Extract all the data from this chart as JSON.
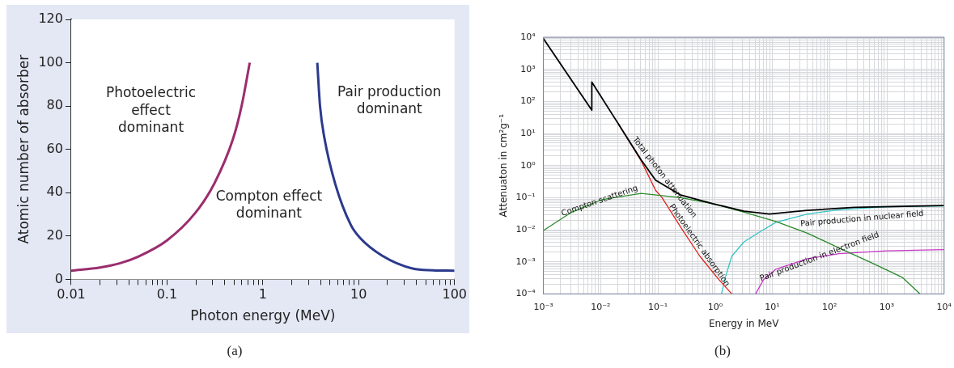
{
  "chart_data": [
    {
      "type": "line",
      "xlabel": "Photon energy (MeV)",
      "ylabel": "Atomic number of absorber",
      "log": "x",
      "grid": false,
      "legend": false,
      "xlim": [
        0.01,
        100
      ],
      "ylim": [
        0,
        120
      ],
      "xticks": [
        0.01,
        {
          "value": 0.02,
          "label": null
        },
        {
          "value": 0.03,
          "label": null
        },
        {
          "value": 0.04,
          "label": null
        },
        {
          "value": 0.05,
          "label": null
        },
        {
          "value": 0.06,
          "label": null
        },
        {
          "value": 0.07,
          "label": null
        },
        {
          "value": 0.08,
          "label": null
        },
        {
          "value": 0.09,
          "label": null
        },
        0.1,
        {
          "value": 0.2,
          "label": null
        },
        {
          "value": 0.3,
          "label": null
        },
        {
          "value": 0.4,
          "label": null
        },
        {
          "value": 0.5,
          "label": null
        },
        {
          "value": 0.6,
          "label": null
        },
        {
          "value": 0.7,
          "label": null
        },
        {
          "value": 0.8,
          "label": null
        },
        {
          "value": 0.9,
          "label": null
        },
        1,
        {
          "value": 2,
          "label": null
        },
        {
          "value": 3,
          "label": null
        },
        {
          "value": 4,
          "label": null
        },
        {
          "value": 5,
          "label": null
        },
        {
          "value": 6,
          "label": null
        },
        {
          "value": 7,
          "label": null
        },
        {
          "value": 8,
          "label": null
        },
        {
          "value": 9,
          "label": null
        },
        10,
        {
          "value": 20,
          "label": null
        },
        {
          "value": 30,
          "label": null
        },
        {
          "value": 40,
          "label": null
        },
        {
          "value": 50,
          "label": null
        },
        {
          "value": 60,
          "label": null
        },
        {
          "value": 70,
          "label": null
        },
        {
          "value": 80,
          "label": null
        },
        {
          "value": 90,
          "label": null
        },
        100
      ],
      "yticks": [
        0,
        20,
        40,
        60,
        80,
        100,
        120
      ],
      "series": [
        {
          "color": "#9b2d6e",
          "x": [
            0.01,
            0.02,
            0.032,
            0.05,
            0.1,
            0.2,
            0.31,
            0.49,
            0.6,
            0.73
          ],
          "values": [
            4,
            5.5,
            7.4,
            10.5,
            18,
            31,
            44,
            65,
            80,
            100
          ]
        },
        {
          "color": "#2b3a8c",
          "x": [
            3.7,
            3.95,
            4.4,
            5.7,
            8.3,
            10.4,
            17.5,
            36.6,
            60,
            100
          ],
          "values": [
            100,
            80,
            65,
            44,
            25,
            19,
            11,
            5,
            4.2,
            4
          ]
        }
      ],
      "annotations": [
        "Photoelectric\neffect\ndominant",
        "Compton effect\ndominant",
        "Pair production\ndominant",
        "(a)"
      ]
    },
    {
      "type": "line",
      "xlabel": "Energy in MeV",
      "ylabel": "Attenuaton in cm²g⁻¹",
      "log": "xy",
      "grid": true,
      "legend": false,
      "xlim": [
        0.001,
        10000
      ],
      "ylim": [
        0.0001,
        10000
      ],
      "xticks": [
        {
          "value": 0.001,
          "label": "10⁻³"
        },
        {
          "value": 0.002,
          "label": null
        },
        {
          "value": 0.003,
          "label": null
        },
        {
          "value": 0.004,
          "label": null
        },
        {
          "value": 0.005,
          "label": null
        },
        {
          "value": 0.006,
          "label": null
        },
        {
          "value": 0.007,
          "label": null
        },
        {
          "value": 0.008,
          "label": null
        },
        {
          "value": 0.009,
          "label": null
        },
        {
          "value": 0.01,
          "label": "10⁻²"
        },
        {
          "value": 0.02,
          "label": null
        },
        {
          "value": 0.03,
          "label": null
        },
        {
          "value": 0.04,
          "label": null
        },
        {
          "value": 0.05,
          "label": null
        },
        {
          "value": 0.06,
          "label": null
        },
        {
          "value": 0.07,
          "label": null
        },
        {
          "value": 0.08,
          "label": null
        },
        {
          "value": 0.09,
          "label": null
        },
        {
          "value": 0.1,
          "label": "10⁻¹"
        },
        {
          "value": 0.2,
          "label": null
        },
        {
          "value": 0.3,
          "label": null
        },
        {
          "value": 0.4,
          "label": null
        },
        {
          "value": 0.5,
          "label": null
        },
        {
          "value": 0.6,
          "label": null
        },
        {
          "value": 0.7,
          "label": null
        },
        {
          "value": 0.8,
          "label": null
        },
        {
          "value": 0.9,
          "label": null
        },
        {
          "value": 1,
          "label": "10⁰"
        },
        {
          "value": 2,
          "label": null
        },
        {
          "value": 3,
          "label": null
        },
        {
          "value": 4,
          "label": null
        },
        {
          "value": 5,
          "label": null
        },
        {
          "value": 6,
          "label": null
        },
        {
          "value": 7,
          "label": null
        },
        {
          "value": 8,
          "label": null
        },
        {
          "value": 9,
          "label": null
        },
        {
          "value": 10,
          "label": "10¹"
        },
        {
          "value": 20,
          "label": null
        },
        {
          "value": 30,
          "label": null
        },
        {
          "value": 40,
          "label": null
        },
        {
          "value": 50,
          "label": null
        },
        {
          "value": 60,
          "label": null
        },
        {
          "value": 70,
          "label": null
        },
        {
          "value": 80,
          "label": null
        },
        {
          "value": 90,
          "label": null
        },
        {
          "value": 100,
          "label": "10²"
        },
        {
          "value": 200,
          "label": null
        },
        {
          "value": 300,
          "label": null
        },
        {
          "value": 400,
          "label": null
        },
        {
          "value": 500,
          "label": null
        },
        {
          "value": 600,
          "label": null
        },
        {
          "value": 700,
          "label": null
        },
        {
          "value": 800,
          "label": null
        },
        {
          "value": 900,
          "label": null
        },
        {
          "value": 1000,
          "label": "10³"
        },
        {
          "value": 2000,
          "label": null
        },
        {
          "value": 3000,
          "label": null
        },
        {
          "value": 4000,
          "label": null
        },
        {
          "value": 5000,
          "label": null
        },
        {
          "value": 6000,
          "label": null
        },
        {
          "value": 7000,
          "label": null
        },
        {
          "value": 8000,
          "label": null
        },
        {
          "value": 9000,
          "label": null
        },
        {
          "value": 10000,
          "label": "10⁴"
        }
      ],
      "yticks": [
        {
          "value": 0.0001,
          "label": "10⁻⁴"
        },
        {
          "value": 0.0002,
          "label": null
        },
        {
          "value": 0.0003,
          "label": null
        },
        {
          "value": 0.0004,
          "label": null
        },
        {
          "value": 0.0005,
          "label": null
        },
        {
          "value": 0.0006,
          "label": null
        },
        {
          "value": 0.0007,
          "label": null
        },
        {
          "value": 0.0008,
          "label": null
        },
        {
          "value": 0.0009,
          "label": null
        },
        {
          "value": 0.001,
          "label": "10⁻³"
        },
        {
          "value": 0.002,
          "label": null
        },
        {
          "value": 0.003,
          "label": null
        },
        {
          "value": 0.004,
          "label": null
        },
        {
          "value": 0.005,
          "label": null
        },
        {
          "value": 0.006,
          "label": null
        },
        {
          "value": 0.007,
          "label": null
        },
        {
          "value": 0.008,
          "label": null
        },
        {
          "value": 0.009,
          "label": null
        },
        {
          "value": 0.01,
          "label": "10⁻²"
        },
        {
          "value": 0.02,
          "label": null
        },
        {
          "value": 0.03,
          "label": null
        },
        {
          "value": 0.04,
          "label": null
        },
        {
          "value": 0.05,
          "label": null
        },
        {
          "value": 0.06,
          "label": null
        },
        {
          "value": 0.07,
          "label": null
        },
        {
          "value": 0.08,
          "label": null
        },
        {
          "value": 0.09,
          "label": null
        },
        {
          "value": 0.1,
          "label": "10⁻¹"
        },
        {
          "value": 0.2,
          "label": null
        },
        {
          "value": 0.3,
          "label": null
        },
        {
          "value": 0.4,
          "label": null
        },
        {
          "value": 0.5,
          "label": null
        },
        {
          "value": 0.6,
          "label": null
        },
        {
          "value": 0.7,
          "label": null
        },
        {
          "value": 0.8,
          "label": null
        },
        {
          "value": 0.9,
          "label": null
        },
        {
          "value": 1,
          "label": "10⁰"
        },
        {
          "value": 2,
          "label": null
        },
        {
          "value": 3,
          "label": null
        },
        {
          "value": 4,
          "label": null
        },
        {
          "value": 5,
          "label": null
        },
        {
          "value": 6,
          "label": null
        },
        {
          "value": 7,
          "label": null
        },
        {
          "value": 8,
          "label": null
        },
        {
          "value": 9,
          "label": null
        },
        {
          "value": 10,
          "label": "10¹"
        },
        {
          "value": 20,
          "label": null
        },
        {
          "value": 30,
          "label": null
        },
        {
          "value": 40,
          "label": null
        },
        {
          "value": 50,
          "label": null
        },
        {
          "value": 60,
          "label": null
        },
        {
          "value": 70,
          "label": null
        },
        {
          "value": 80,
          "label": null
        },
        {
          "value": 90,
          "label": null
        },
        {
          "value": 100,
          "label": "10²"
        },
        {
          "value": 200,
          "label": null
        },
        {
          "value": 300,
          "label": null
        },
        {
          "value": 400,
          "label": null
        },
        {
          "value": 500,
          "label": null
        },
        {
          "value": 600,
          "label": null
        },
        {
          "value": 700,
          "label": null
        },
        {
          "value": 800,
          "label": null
        },
        {
          "value": 900,
          "label": null
        },
        {
          "value": 1000,
          "label": "10³"
        },
        {
          "value": 2000,
          "label": null
        },
        {
          "value": 3000,
          "label": null
        },
        {
          "value": 4000,
          "label": null
        },
        {
          "value": 5000,
          "label": null
        },
        {
          "value": 6000,
          "label": null
        },
        {
          "value": 7000,
          "label": null
        },
        {
          "value": 8000,
          "label": null
        },
        {
          "value": 9000,
          "label": null
        },
        {
          "value": 10000,
          "label": "10⁴"
        }
      ],
      "series": [
        {
          "name": "Total photon attenuation",
          "color": "#000000",
          "x": [
            0.001,
            0.007,
            0.007,
            0.051,
            0.091,
            0.25,
            0.91,
            3.2,
            8.9,
            40,
            270,
            10000
          ],
          "values": [
            9000,
            53,
            400,
            1.5,
            0.35,
            0.12,
            0.065,
            0.038,
            0.031,
            0.04,
            0.05,
            0.057
          ]
        },
        {
          "name": "Compton scattering",
          "color": "#2a8a2a",
          "x": [
            0.001,
            0.003,
            0.0105,
            0.051,
            0.25,
            0.91,
            3.2,
            11.5,
            41,
            146,
            520,
            1850,
            3800
          ],
          "values": [
            0.0095,
            0.034,
            0.087,
            0.135,
            0.1,
            0.065,
            0.035,
            0.018,
            0.0078,
            0.0027,
            0.00096,
            0.00033,
            0.0001
          ]
        },
        {
          "name": "Photoelectric absorption",
          "color": "#e0201b",
          "x": [
            0.02,
            0.051,
            0.091,
            0.118,
            0.25,
            0.54,
            1.16,
            1.95
          ],
          "values": [
            21,
            1.4,
            0.17,
            0.1,
            0.012,
            0.0015,
            0.00028,
            0.0001
          ]
        },
        {
          "name": "Pair production in nuclear field",
          "color": "#35c4c4",
          "x": [
            1.29,
            1.5,
            1.95,
            3.2,
            6.1,
            11.5,
            41,
            146,
            1000,
            10000
          ],
          "values": [
            0.0001,
            0.00032,
            0.0015,
            0.0042,
            0.0087,
            0.017,
            0.031,
            0.042,
            0.052,
            0.055
          ]
        },
        {
          "name": "Pair production in electron field",
          "color": "#c637c6",
          "x": [
            5.1,
            7,
            11.5,
            41,
            146,
            1000,
            10000
          ],
          "values": [
            0.0001,
            0.00028,
            0.00059,
            0.00125,
            0.0018,
            0.0022,
            0.0024
          ]
        }
      ],
      "annotations": [
        "(b)"
      ]
    }
  ]
}
